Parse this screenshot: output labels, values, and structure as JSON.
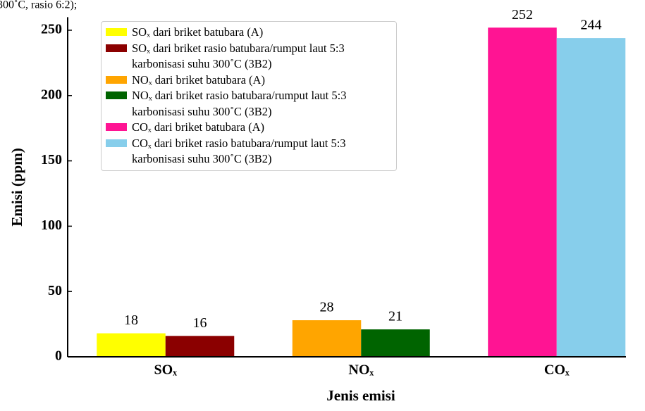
{
  "caption_fragment": "300˚C, rasio 6:2);",
  "chart_data": {
    "type": "bar",
    "xlabel": "Jenis emisi",
    "ylabel": "Emisi (ppm)",
    "categories": [
      "SOₓ",
      "NOₓ",
      "COₓ"
    ],
    "series": [
      {
        "name": "SOₓ dari briket batubara (A)",
        "color": "#ffff00",
        "values": [
          18,
          null,
          null
        ]
      },
      {
        "name": "SOₓ dari briket rasio batubara/rumput laut 5:3 karbonisasi suhu 300˚C (3B2)",
        "color": "#8b0000",
        "values": [
          16,
          null,
          null
        ]
      },
      {
        "name": "NOₓ dari briket batubara (A)",
        "color": "#ffa500",
        "values": [
          null,
          28,
          null
        ]
      },
      {
        "name": "NOₓ dari briket rasio batubara/rumput laut 5:3 karbonisasi suhu 300˚C (3B2)",
        "color": "#006400",
        "values": [
          null,
          21,
          null
        ]
      },
      {
        "name": "COₓ dari briket batubara (A)",
        "color": "#ff1493",
        "values": [
          null,
          null,
          252
        ]
      },
      {
        "name": "COₓ dari briket rasio batubara/rumput laut 5:3 karbonisasi suhu 300˚C (3B2)",
        "color": "#87ceeb",
        "values": [
          null,
          null,
          244
        ]
      }
    ],
    "ylim": [
      0,
      260
    ],
    "yticks": [
      0,
      50,
      100,
      150,
      200,
      250
    ],
    "legend": "upper left"
  }
}
